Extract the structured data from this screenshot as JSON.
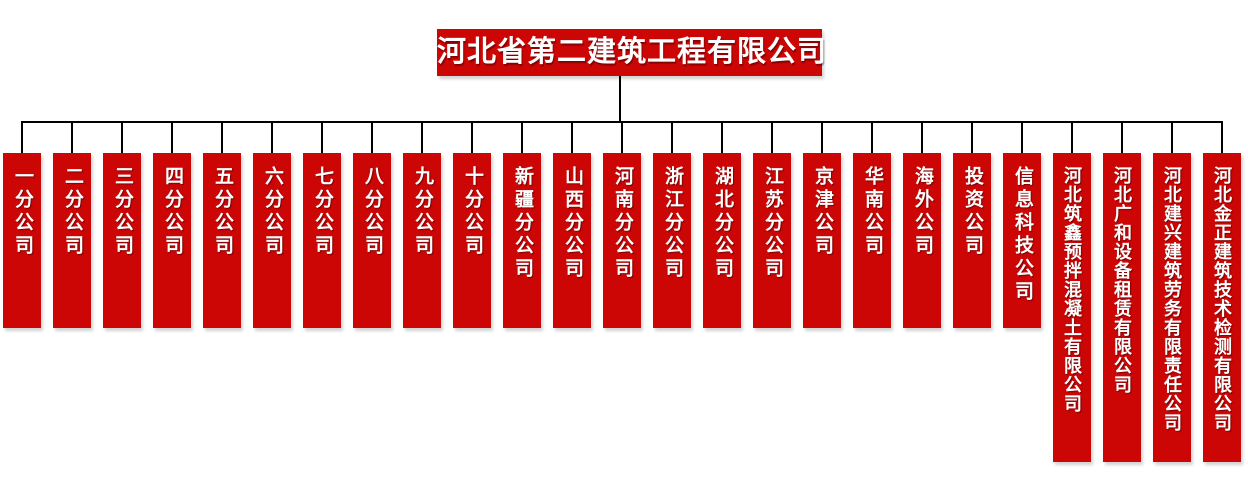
{
  "title": "河北省第二建筑工程有限公司",
  "colors": {
    "box_red": "#cc0505",
    "line_black": "#000000",
    "text_white": "#ffffff",
    "background": "#ffffff"
  },
  "branches": [
    {
      "label": "一分公司"
    },
    {
      "label": "二分公司"
    },
    {
      "label": "三分公司"
    },
    {
      "label": "四分公司"
    },
    {
      "label": "五分公司"
    },
    {
      "label": "六分公司"
    },
    {
      "label": "七分公司"
    },
    {
      "label": "八分公司"
    },
    {
      "label": "九分公司"
    },
    {
      "label": "十分公司"
    },
    {
      "label": "新疆分公司"
    },
    {
      "label": "山西分公司"
    },
    {
      "label": "河南分公司"
    },
    {
      "label": "浙江分公司"
    },
    {
      "label": "湖北分公司"
    },
    {
      "label": "江苏分公司"
    },
    {
      "label": "京津公司"
    },
    {
      "label": "华南公司"
    },
    {
      "label": "海外公司"
    },
    {
      "label": "投资公司"
    },
    {
      "label": "信息科技公司"
    },
    {
      "label": "河北筑鑫预拌混凝土有限公司"
    },
    {
      "label": "河北广和设备租赁有限公司"
    },
    {
      "label": "河北建兴建筑劳务有限责任公司"
    },
    {
      "label": "河北金正建筑技术检测有限公司"
    }
  ]
}
